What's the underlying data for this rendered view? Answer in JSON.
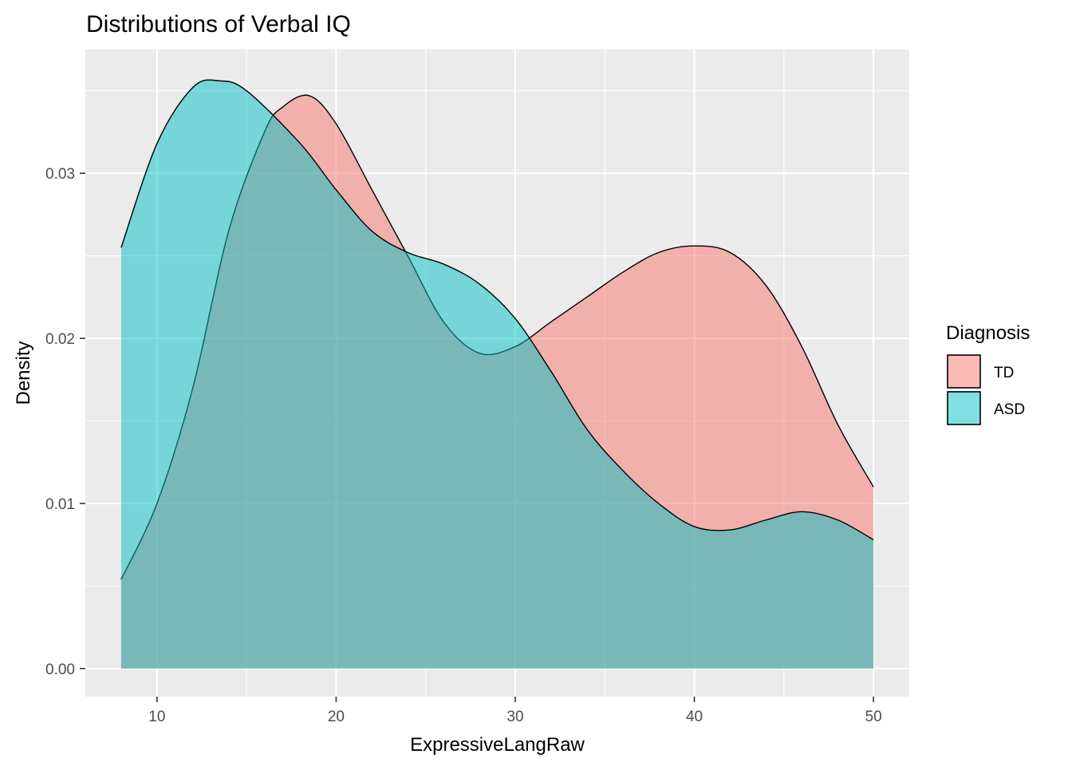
{
  "chart_data": {
    "type": "area",
    "title": "Distributions of Verbal IQ",
    "xlabel": "ExpressiveLangRaw",
    "ylabel": "Density",
    "xlim": [
      6,
      52
    ],
    "ylim": [
      -0.0017,
      0.0375
    ],
    "x_ticks": [
      10,
      20,
      30,
      40,
      50
    ],
    "x_tick_labels": [
      "10",
      "20",
      "30",
      "40",
      "50"
    ],
    "y_ticks": [
      0.0,
      0.01,
      0.02,
      0.03
    ],
    "y_tick_labels": [
      "0.00",
      "0.01",
      "0.02",
      "0.03"
    ],
    "grid": true,
    "legend_title": "Diagnosis",
    "legend_position": "right",
    "series": [
      {
        "name": "TD",
        "color": "#F8766D",
        "points": [
          [
            8,
            0.0054
          ],
          [
            10,
            0.01
          ],
          [
            12,
            0.017
          ],
          [
            14,
            0.0265
          ],
          [
            16,
            0.0325
          ],
          [
            17,
            0.034
          ],
          [
            18.5,
            0.0347
          ],
          [
            20,
            0.033
          ],
          [
            22,
            0.029
          ],
          [
            24,
            0.025
          ],
          [
            26,
            0.021
          ],
          [
            28,
            0.0191
          ],
          [
            30,
            0.0195
          ],
          [
            32,
            0.021
          ],
          [
            34,
            0.0225
          ],
          [
            36,
            0.024
          ],
          [
            38,
            0.0252
          ],
          [
            40,
            0.0256
          ],
          [
            42,
            0.0252
          ],
          [
            44,
            0.0232
          ],
          [
            46,
            0.0195
          ],
          [
            48,
            0.0148
          ],
          [
            50,
            0.011
          ]
        ]
      },
      {
        "name": "ASD",
        "color": "#00BFC4",
        "points": [
          [
            8,
            0.0255
          ],
          [
            10,
            0.0318
          ],
          [
            12,
            0.0352
          ],
          [
            13.5,
            0.0356
          ],
          [
            15,
            0.035
          ],
          [
            18,
            0.0318
          ],
          [
            20,
            0.029
          ],
          [
            22,
            0.0265
          ],
          [
            24,
            0.0252
          ],
          [
            26,
            0.0245
          ],
          [
            28,
            0.0233
          ],
          [
            30,
            0.0212
          ],
          [
            32,
            0.018
          ],
          [
            34,
            0.0145
          ],
          [
            36,
            0.012
          ],
          [
            38,
            0.01
          ],
          [
            40,
            0.0086
          ],
          [
            42,
            0.0084
          ],
          [
            44,
            0.009
          ],
          [
            46,
            0.0095
          ],
          [
            48,
            0.009
          ],
          [
            50,
            0.0078
          ]
        ]
      }
    ]
  }
}
